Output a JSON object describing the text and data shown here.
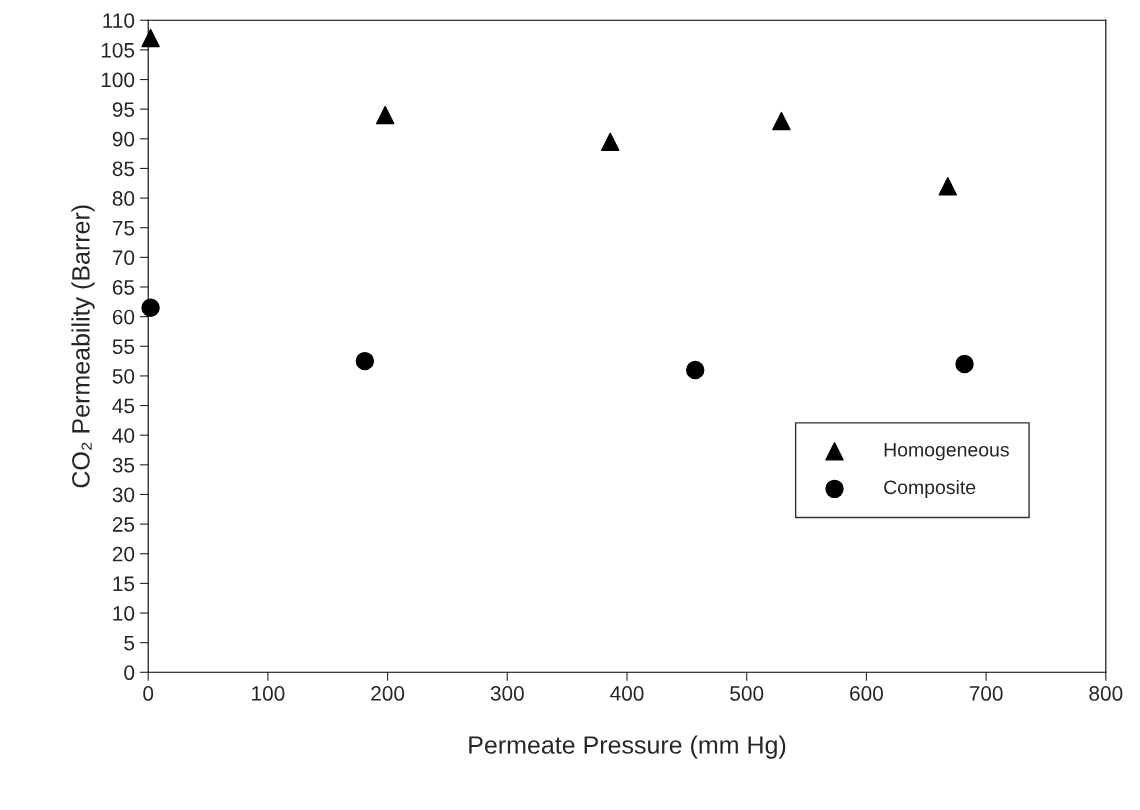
{
  "chart_data": {
    "type": "scatter",
    "xlabel": "Permeate Pressure (mm Hg)",
    "ylabel": "CO₂ Permeability (Barrer)",
    "xlim": [
      0,
      800
    ],
    "xticks": [
      0,
      100,
      200,
      300,
      400,
      500,
      600,
      700,
      800
    ],
    "ylim": [
      0,
      110
    ],
    "yticks": [
      0,
      5,
      10,
      15,
      20,
      25,
      30,
      35,
      40,
      45,
      50,
      55,
      60,
      65,
      70,
      75,
      80,
      85,
      90,
      95,
      100,
      105,
      110
    ],
    "grid": false,
    "legend": "right",
    "series": [
      {
        "name": "Homogeneous",
        "color": "#000000",
        "marker": "triangle",
        "x": [
          2,
          198,
          386,
          529,
          668
        ],
        "values": [
          107,
          94,
          89.5,
          93,
          82
        ]
      },
      {
        "name": "Composite",
        "color": "#000000",
        "marker": "circle",
        "x": [
          2,
          181,
          457,
          682
        ],
        "values": [
          61.5,
          52.5,
          51,
          52
        ]
      }
    ]
  }
}
